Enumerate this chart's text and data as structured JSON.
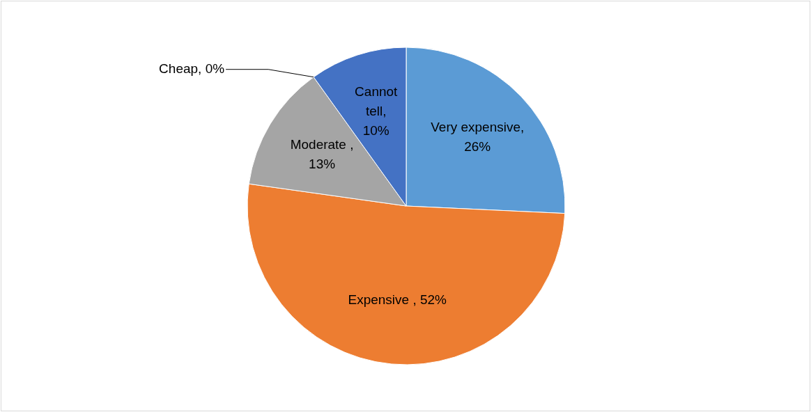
{
  "chart_data": {
    "type": "pie",
    "categories": [
      "Very expensive",
      "Expensive ",
      "Moderate ",
      "Cheap",
      "Cannot tell"
    ],
    "values": [
      26,
      52,
      13,
      0,
      10
    ],
    "value_labels": [
      ", 26%",
      ", 52%",
      ", 13%",
      ", 0%",
      ", 10%"
    ],
    "colors": [
      "#5b9bd5",
      "#ed7d31",
      "#a5a5a5",
      null,
      "#4472c4"
    ]
  }
}
